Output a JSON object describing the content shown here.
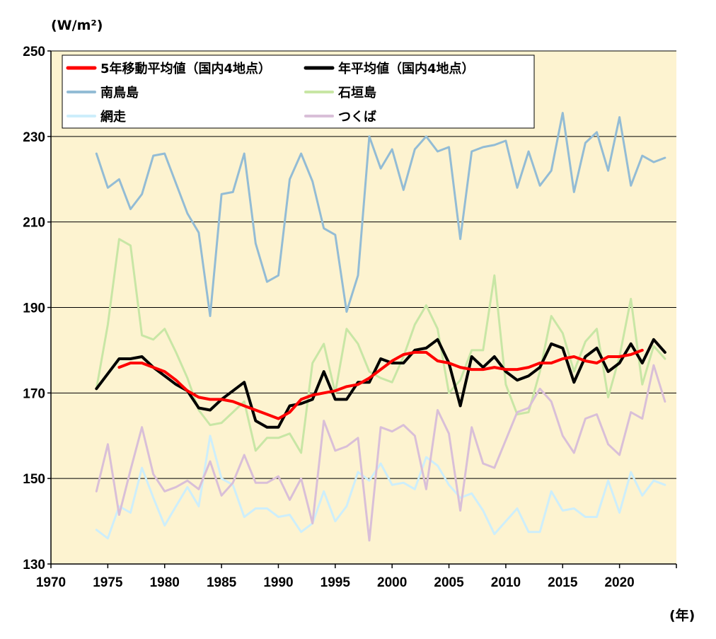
{
  "chart_data": {
    "type": "line",
    "ylabel": "(W/m²)",
    "xlabel": "(年)",
    "xlim": [
      1970,
      2025
    ],
    "ylim": [
      130,
      250
    ],
    "xticks": [
      "1970",
      "1975",
      "1980",
      "1985",
      "1990",
      "1995",
      "2000",
      "2005",
      "2010",
      "2015",
      "2020"
    ],
    "yticks": [
      "130",
      "150",
      "170",
      "190",
      "210",
      "230",
      "250"
    ],
    "grid": "horizontal",
    "legend_position": "top-left",
    "background_color": "#fdf3d0",
    "series": [
      {
        "name": "南鳥島",
        "color": "#93bcd5",
        "width": 3,
        "x": [
          1974,
          1975,
          1976,
          1977,
          1978,
          1979,
          1980,
          1981,
          1982,
          1983,
          1984,
          1985,
          1986,
          1987,
          1988,
          1989,
          1990,
          1991,
          1992,
          1993,
          1994,
          1995,
          1996,
          1997,
          1998,
          1999,
          2000,
          2001,
          2002,
          2003,
          2004,
          2005,
          2006,
          2007,
          2008,
          2009,
          2010,
          2011,
          2012,
          2013,
          2014,
          2015,
          2016,
          2017,
          2018,
          2019,
          2020,
          2021,
          2022,
          2023,
          2024
        ],
        "values": [
          226,
          218,
          220,
          213,
          216.5,
          225.5,
          226,
          219,
          212,
          207.5,
          188,
          216.5,
          217,
          226,
          205,
          196,
          197.5,
          220,
          226,
          219.5,
          208.5,
          207,
          189,
          197.5,
          230,
          222.5,
          227,
          217.5,
          227,
          230,
          226.5,
          227.5,
          206,
          226.5,
          227.5,
          228,
          229,
          218,
          226.5,
          218.5,
          222,
          235.5,
          217,
          228.5,
          231,
          222,
          234.5,
          218.5,
          225.5,
          224,
          225
        ]
      },
      {
        "name": "石垣島",
        "color": "#c8e6a5",
        "width": 3,
        "x": [
          1974,
          1975,
          1976,
          1977,
          1978,
          1979,
          1980,
          1981,
          1982,
          1983,
          1984,
          1985,
          1986,
          1987,
          1988,
          1989,
          1990,
          1991,
          1992,
          1993,
          1994,
          1995,
          1996,
          1997,
          1998,
          1999,
          2000,
          2001,
          2002,
          2003,
          2004,
          2005,
          2006,
          2007,
          2008,
          2009,
          2010,
          2011,
          2012,
          2013,
          2014,
          2015,
          2016,
          2017,
          2018,
          2019,
          2020,
          2021,
          2022,
          2023,
          2024
        ],
        "values": [
          171,
          186,
          206,
          204.5,
          183.5,
          182.5,
          185,
          179.5,
          173.5,
          166,
          162.5,
          163,
          165.5,
          168,
          156.5,
          159.5,
          159.5,
          160.5,
          156,
          177,
          181.5,
          170,
          185,
          181.5,
          175,
          173.5,
          172.5,
          178.5,
          186,
          190.5,
          185,
          170,
          173,
          180,
          180,
          197.5,
          172,
          165,
          165.5,
          175,
          188,
          184,
          175,
          182,
          185,
          169,
          178.5,
          192,
          172,
          181,
          178
        ]
      },
      {
        "name": "網走",
        "color": "#cdeefb",
        "width": 3,
        "x": [
          1974,
          1975,
          1976,
          1977,
          1978,
          1979,
          1980,
          1981,
          1982,
          1983,
          1984,
          1985,
          1986,
          1987,
          1988,
          1989,
          1990,
          1991,
          1992,
          1993,
          1994,
          1995,
          1996,
          1997,
          1998,
          1999,
          2000,
          2001,
          2002,
          2003,
          2004,
          2005,
          2006,
          2007,
          2008,
          2009,
          2010,
          2011,
          2012,
          2013,
          2014,
          2015,
          2016,
          2017,
          2018,
          2019,
          2020,
          2021,
          2022,
          2023,
          2024
        ],
        "values": [
          138,
          136,
          143.5,
          142,
          152.5,
          145.5,
          139,
          143.5,
          148,
          143.5,
          160,
          150,
          148.5,
          141,
          143,
          143,
          141,
          141.5,
          137.5,
          139.5,
          147,
          140,
          143.5,
          151.5,
          149.5,
          153.5,
          148.5,
          149,
          147.5,
          155,
          153,
          148.5,
          145.5,
          146.5,
          142.5,
          137,
          140,
          143,
          137.5,
          137.5,
          147,
          142.5,
          143,
          141,
          141,
          149.5,
          142,
          151.5,
          146,
          149.5,
          148.5
        ]
      },
      {
        "name": "つくば",
        "color": "#d9bfd8",
        "width": 3,
        "x": [
          1974,
          1975,
          1976,
          1977,
          1978,
          1979,
          1980,
          1981,
          1982,
          1983,
          1984,
          1985,
          1986,
          1987,
          1988,
          1989,
          1990,
          1991,
          1992,
          1993,
          1994,
          1995,
          1996,
          1997,
          1998,
          1999,
          2000,
          2001,
          2002,
          2003,
          2004,
          2005,
          2006,
          2007,
          2008,
          2009,
          2010,
          2011,
          2012,
          2013,
          2014,
          2015,
          2016,
          2017,
          2018,
          2019,
          2020,
          2021,
          2022,
          2023,
          2024
        ],
        "values": [
          147,
          158,
          141.5,
          152,
          162,
          151,
          147,
          148,
          149.5,
          147.5,
          154,
          146,
          149,
          155.5,
          149,
          149,
          150.5,
          145,
          150,
          139.5,
          163.5,
          156.5,
          157.5,
          159.5,
          135.5,
          162,
          161,
          162.5,
          160,
          147.5,
          166,
          160.5,
          142.5,
          162,
          153.5,
          152.5,
          159,
          165.5,
          166.5,
          171,
          168,
          160,
          156,
          164,
          165,
          158,
          155.5,
          165.5,
          164,
          176.5,
          168
        ]
      },
      {
        "name": "年平均値（国内4地点）",
        "color": "#000000",
        "width": 4,
        "x": [
          1974,
          1975,
          1976,
          1977,
          1978,
          1979,
          1980,
          1981,
          1982,
          1983,
          1984,
          1985,
          1986,
          1987,
          1988,
          1989,
          1990,
          1991,
          1992,
          1993,
          1994,
          1995,
          1996,
          1997,
          1998,
          1999,
          2000,
          2001,
          2002,
          2003,
          2004,
          2005,
          2006,
          2007,
          2008,
          2009,
          2010,
          2011,
          2012,
          2013,
          2014,
          2015,
          2016,
          2017,
          2018,
          2019,
          2020,
          2021,
          2022,
          2023,
          2024
        ],
        "values": [
          171,
          174.5,
          178,
          178,
          178.5,
          176,
          174,
          172,
          170.5,
          166.5,
          166,
          168.5,
          170.5,
          172.5,
          163.5,
          162,
          162,
          167,
          167.5,
          168.5,
          175,
          168.5,
          168.5,
          172.5,
          172.5,
          178,
          177,
          177,
          180,
          180.5,
          182.5,
          177,
          167,
          178.5,
          176,
          178.5,
          175,
          173,
          174,
          176,
          181.5,
          180.5,
          172.5,
          178.5,
          180.5,
          175,
          177,
          181.5,
          177,
          182.5,
          179.5
        ]
      },
      {
        "name": "5年移動平均値（国内4地点）",
        "color": "#ff0000",
        "width": 4,
        "x": [
          1976,
          1977,
          1978,
          1979,
          1980,
          1981,
          1982,
          1983,
          1984,
          1985,
          1986,
          1987,
          1988,
          1989,
          1990,
          1991,
          1992,
          1993,
          1994,
          1995,
          1996,
          1997,
          1998,
          1999,
          2000,
          2001,
          2002,
          2003,
          2004,
          2005,
          2006,
          2007,
          2008,
          2009,
          2010,
          2011,
          2012,
          2013,
          2014,
          2015,
          2016,
          2017,
          2018,
          2019,
          2020,
          2021,
          2022
        ],
        "values": [
          176,
          177,
          177,
          176,
          175,
          173,
          170.5,
          169,
          168.5,
          168.5,
          168,
          167,
          166,
          165,
          164,
          165.5,
          168.5,
          169.5,
          170,
          170.5,
          171.5,
          172,
          173.5,
          175.5,
          177.5,
          179,
          179.5,
          179.5,
          177.5,
          177,
          176,
          175.5,
          175.5,
          176,
          175.5,
          175.5,
          176,
          177,
          177,
          178,
          178.5,
          177.5,
          177,
          178.5,
          178.5,
          179,
          180
        ]
      }
    ],
    "legend": [
      {
        "label": "5年移動平均値（国内4地点）",
        "color": "#ff0000"
      },
      {
        "label": "年平均値（国内4地点）",
        "color": "#000000"
      },
      {
        "label": "南鳥島",
        "color": "#93bcd5"
      },
      {
        "label": "石垣島",
        "color": "#c8e6a5"
      },
      {
        "label": "網走",
        "color": "#cdeefb"
      },
      {
        "label": "つくば",
        "color": "#d9bfd8"
      }
    ]
  }
}
